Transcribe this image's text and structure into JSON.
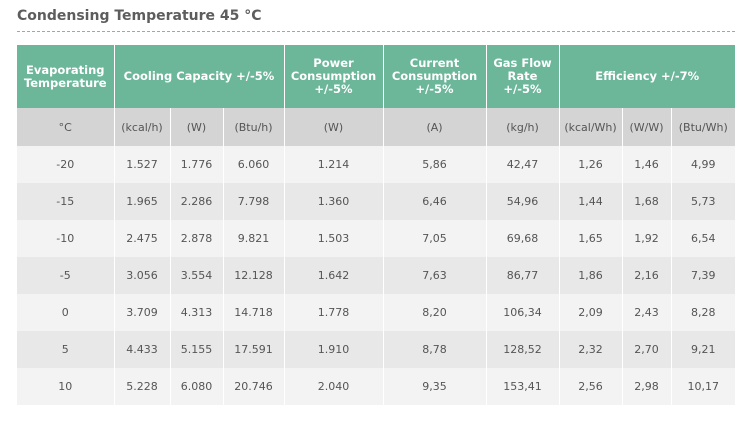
{
  "title": "Condensing Temperature 45 °C",
  "headers": [
    {
      "name": "evaporating-temperature",
      "text": "Evaporating Temperature",
      "colspan": 1
    },
    {
      "name": "cooling-capacity",
      "text": "Cooling Capacity +/-5%",
      "colspan": 3
    },
    {
      "name": "power-consumption",
      "text": "Power Consumption +/-5%",
      "colspan": 1
    },
    {
      "name": "current-consumption",
      "text": "Current Consumption +/-5%",
      "colspan": 1
    },
    {
      "name": "gas-flow-rate",
      "text": "Gas Flow Rate +/-5%",
      "colspan": 1
    },
    {
      "name": "efficiency",
      "text": "Efficiency +/-7%",
      "colspan": 3
    }
  ],
  "units": [
    "°C",
    "(kcal/h)",
    "(W)",
    "(Btu/h)",
    "(W)",
    "(A)",
    "(kg/h)",
    "(kcal/Wh)",
    "(W/W)",
    "(Btu/Wh)"
  ],
  "rows": [
    [
      "-20",
      "1.527",
      "1.776",
      "6.060",
      "1.214",
      "5,86",
      "42,47",
      "1,26",
      "1,46",
      "4,99"
    ],
    [
      "-15",
      "1.965",
      "2.286",
      "7.798",
      "1.360",
      "6,46",
      "54,96",
      "1,44",
      "1,68",
      "5,73"
    ],
    [
      "-10",
      "2.475",
      "2.878",
      "9.821",
      "1.503",
      "7,05",
      "69,68",
      "1,65",
      "1,92",
      "6,54"
    ],
    [
      "-5",
      "3.056",
      "3.554",
      "12.128",
      "1.642",
      "7,63",
      "86,77",
      "1,86",
      "2,16",
      "7,39"
    ],
    [
      "0",
      "3.709",
      "4.313",
      "14.718",
      "1.778",
      "8,20",
      "106,34",
      "2,09",
      "2,43",
      "8,28"
    ],
    [
      "5",
      "4.433",
      "5.155",
      "17.591",
      "1.910",
      "8,78",
      "128,52",
      "2,32",
      "2,70",
      "9,21"
    ],
    [
      "10",
      "5.228",
      "6.080",
      "20.746",
      "2.040",
      "9,35",
      "153,41",
      "2,56",
      "2,98",
      "10,17"
    ]
  ],
  "colors": {
    "header_bg": "#6cb69a",
    "unit_bg": "#d4d4d4",
    "row_odd": "#f3f3f3",
    "row_even": "#e8e8e8",
    "title_rule": "#79bda1"
  }
}
